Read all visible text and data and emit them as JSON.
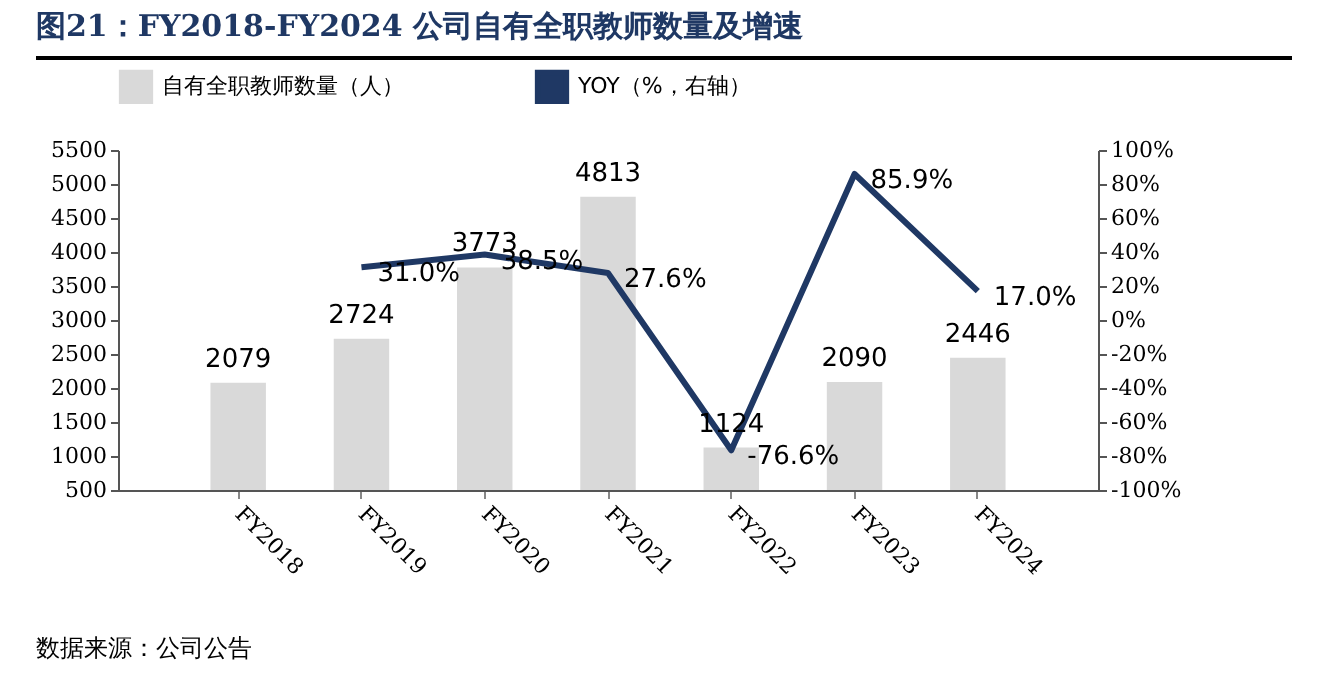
{
  "chart_data": {
    "type": "bar",
    "title": "图21：FY2018-FY2024 公司自有全职教师数量及增速",
    "annotations": [
      "数据来源：公司公告"
    ],
    "categories": [
      "FY2018",
      "FY2019",
      "FY2020",
      "FY2021",
      "FY2022",
      "FY2023",
      "FY2024"
    ],
    "series": [
      {
        "name": "自有全职教师数量（人）",
        "type": "bar",
        "color": "#d9d9d9",
        "values": [
          2079,
          2724,
          3773,
          4813,
          1124,
          2090,
          2446
        ],
        "value_labels": [
          "2079",
          "2724",
          "3773",
          "4813",
          "1124",
          "2090",
          "2446"
        ]
      },
      {
        "name": "YOY（%，右轴）",
        "type": "line",
        "axis": "y2",
        "color": "#1f3864",
        "values": [
          null,
          31.0,
          38.5,
          27.6,
          -76.6,
          85.9,
          17.0
        ],
        "value_labels": [
          null,
          "31.0%",
          "38.5%",
          "27.6%",
          "-76.6%",
          "85.9%",
          "17.0%"
        ]
      }
    ],
    "ylim": [
      500,
      5500
    ],
    "yticks": [
      500,
      1000,
      1500,
      2000,
      2500,
      3000,
      3500,
      4000,
      4500,
      5000,
      5500
    ],
    "y2lim": [
      -100,
      100
    ],
    "y2ticks": [
      {
        "value": -100,
        "label": "-100%"
      },
      {
        "value": -80,
        "label": "-80%"
      },
      {
        "value": -60,
        "label": "-60%"
      },
      {
        "value": -40,
        "label": "-40%"
      },
      {
        "value": -20,
        "label": "-20%"
      },
      {
        "value": 0,
        "label": "0%"
      },
      {
        "value": 20,
        "label": "20%"
      },
      {
        "value": 40,
        "label": "40%"
      },
      {
        "value": 60,
        "label": "60%"
      },
      {
        "value": 80,
        "label": "80%"
      },
      {
        "value": 100,
        "label": "100%"
      }
    ],
    "grid": false,
    "legend": "top",
    "marker": "none",
    "line_style": "solid"
  }
}
